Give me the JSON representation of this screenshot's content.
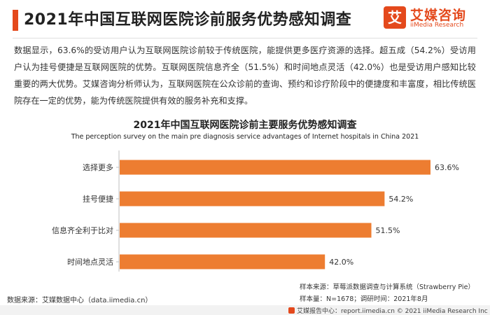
{
  "header": {
    "title": "2021年中国互联网医院诊前服务优势感知调查",
    "accent_color": "#e4491c"
  },
  "brand": {
    "icon_glyph": "艾",
    "name_cn": "艾媒咨询",
    "name_en": "iiMedia Research",
    "icon": "iimedia-logo-icon"
  },
  "summary": "数据显示，63.6%的受访用户认为互联网医院诊前较于传统医院，能提供更多医疗资源的选择。超五成（54.2%）受访用户认为挂号便捷是互联网医院的优势。互联网医院信息齐全（51.5%）和时间地点灵活（42.0%）也是受访用户感知比较重要的两大优势。艾媒咨询分析师认为，互联网医院在公众诊前的查询、预约和诊疗阶段中的便捷度和丰富度，相比传统医院存在一定的优势，能为传统医院提供有效的服务补充和支撑。",
  "chart_data": {
    "type": "bar",
    "orientation": "horizontal",
    "title": "2021年中国互联网医院诊前主要服务优势感知调查",
    "subtitle": "The perception survey on the  main pre diagnosis service advantages of Internet hospitals in China  2021",
    "categories": [
      "选择更多",
      "挂号便捷",
      "信息齐全利于比对",
      "时间地点灵活"
    ],
    "values": [
      63.6,
      54.2,
      51.5,
      42.0
    ],
    "value_labels": [
      "63.6%",
      "54.2%",
      "51.5%",
      "42.0%"
    ],
    "xlim": [
      0,
      63.6
    ],
    "bar_color": "#ed7d31",
    "grid": false,
    "legend": "none"
  },
  "footer": {
    "data_source": "数据来源：艾媒数据中心（data.iimedia.cn）",
    "sample_source": "样本来源：草莓派数据调查与计算系统（Strawberry Pie）",
    "sample_size": "样本量：N=1678；调研时间：2021年8月",
    "copyright": "艾媒报告中心：report.iimedia.cn  ©  2021  iiMedia Research Inc"
  }
}
